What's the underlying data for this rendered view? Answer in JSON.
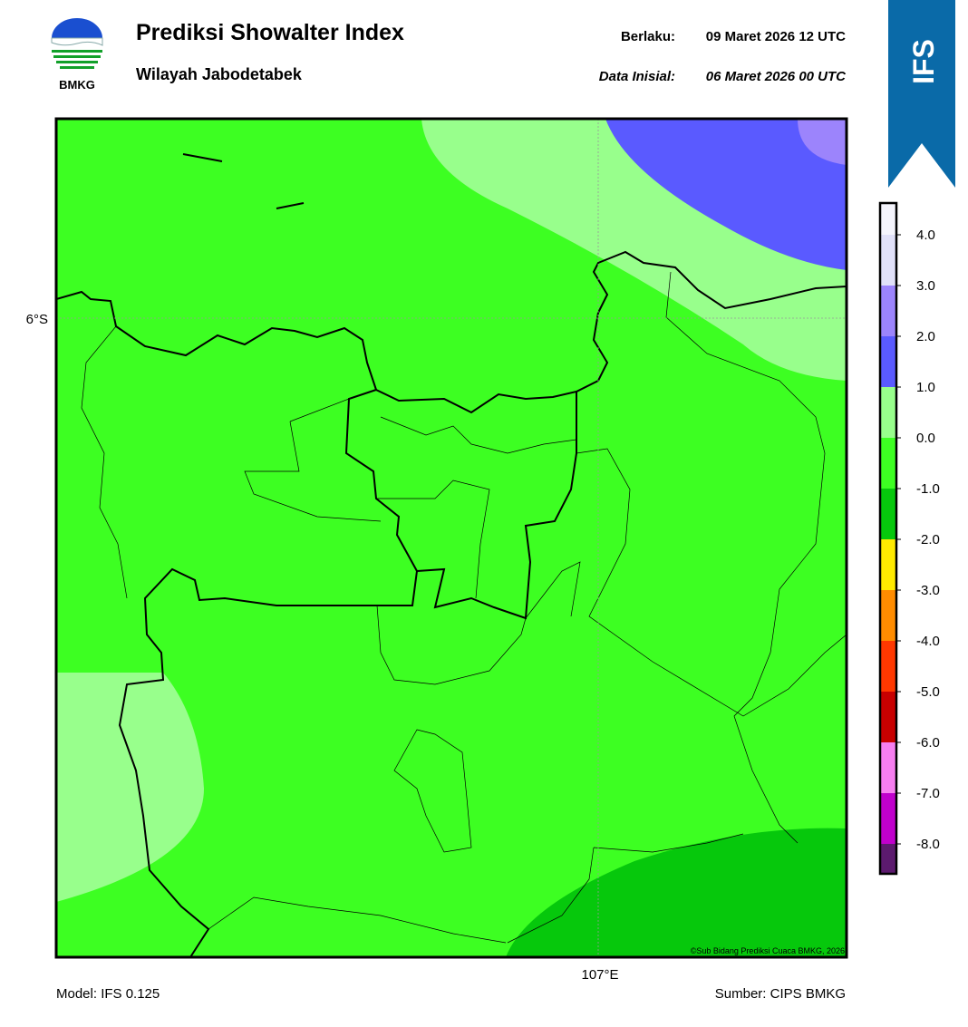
{
  "header": {
    "logo_text": "BMKG",
    "title": "Prediksi Showalter Index",
    "subtitle": "Wilayah Jabodetabek",
    "valid_label": "Berlaku:",
    "valid_time": "09 Maret 2026 12 UTC",
    "init_label": "Data Inisial:",
    "init_time": "06 Maret 2026 00 UTC"
  },
  "ribbon": {
    "label": "IFS"
  },
  "map": {
    "lat_label": "6°S",
    "lon_label": "107°E",
    "credit": "©Sub Bidang Prediksi Cuaca BMKG, 2026"
  },
  "colorbar": {
    "ticks": [
      "4.0",
      "3.0",
      "2.0",
      "1.0",
      "0.0",
      "-1.0",
      "-2.0",
      "-3.0",
      "-4.0",
      "-5.0",
      "-6.0",
      "-7.0",
      "-8.0"
    ],
    "colors": [
      "#f4f4fc",
      "#e0e0f8",
      "#9c84fc",
      "#5a5aff",
      "#98ff8c",
      "#3dff22",
      "#06c80c",
      "#ffea00",
      "#ff8c00",
      "#ff3800",
      "#c80000",
      "#f77ef0",
      "#c000cc",
      "#5c1a6e"
    ]
  },
  "footer": {
    "model": "Model: IFS 0.125",
    "source": "Sumber: CIPS BMKG"
  }
}
